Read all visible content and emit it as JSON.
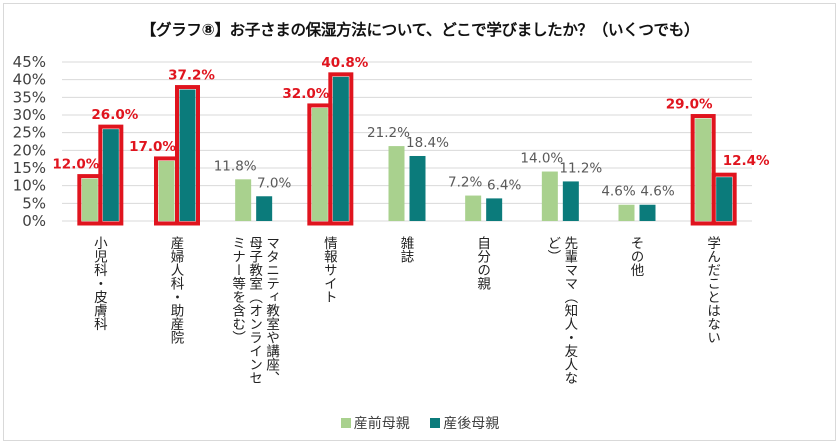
{
  "chart_data": {
    "type": "bar",
    "title": "【グラフ⑧】お子さまの保湿方法について、どこで学びましたか？（いくつでも）",
    "xlabel": "",
    "ylabel": "",
    "ylim": [
      0,
      45
    ],
    "yticks": [
      0,
      5,
      10,
      15,
      20,
      25,
      30,
      35,
      40,
      45
    ],
    "ytick_labels": [
      "0%",
      "5%",
      "10%",
      "15%",
      "20%",
      "25%",
      "30%",
      "35%",
      "40%",
      "45%"
    ],
    "grid": true,
    "legend_position": "bottom",
    "categories": [
      "小児科・皮膚科",
      "産婦人科・助産院",
      "マタニティ教室や講座、母子教室（オンラインセミナー等を含む）",
      "情報サイト",
      "雑誌",
      "自分の親",
      "先輩ママ（知人・友人など）",
      "その他",
      "学んだことはない"
    ],
    "category_lines": [
      [
        "小児科・皮膚科"
      ],
      [
        "産婦人科・助産院"
      ],
      [
        "マタニティ教室や講座、",
        "母子教室（オンラインセ",
        "ミナー等を含む）"
      ],
      [
        "情報サイト"
      ],
      [
        "雑誌"
      ],
      [
        "自分の親"
      ],
      [
        "先輩ママ（知人・友人な",
        "ど）"
      ],
      [
        "その他"
      ],
      [
        "学んだことはない"
      ]
    ],
    "series": [
      {
        "name": "産前母親",
        "color": "#a9d18e",
        "values": [
          12.0,
          17.0,
          11.8,
          32.0,
          21.2,
          7.2,
          14.0,
          4.6,
          29.0
        ],
        "labels": [
          "12.0%",
          "17.0%",
          "11.8%",
          "32.0%",
          "21.2%",
          "7.2%",
          "14.0%",
          "4.6%",
          "29.0%"
        ]
      },
      {
        "name": "産後母親",
        "color": "#0b7b7b",
        "values": [
          26.0,
          37.2,
          7.0,
          40.8,
          18.4,
          6.4,
          11.2,
          4.6,
          12.4
        ],
        "labels": [
          "26.0%",
          "37.2%",
          "7.0%",
          "40.8%",
          "18.4%",
          "6.4%",
          "11.2%",
          "4.6%",
          "12.4%"
        ]
      }
    ],
    "highlighted_categories": [
      0,
      1,
      3,
      8
    ],
    "highlight_color": "#e0141e"
  }
}
